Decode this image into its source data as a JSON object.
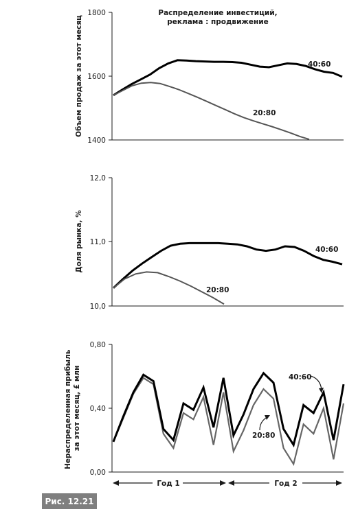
{
  "figure_caption": "Рис. 12.21",
  "chart_data": [
    {
      "type": "line",
      "title": "Распределение инвестиций,",
      "subtitle": "реклама : продвижение",
      "ylabel": "Объем продаж за этот месяц",
      "ylim": [
        1400,
        1800
      ],
      "yticks": [
        "1800",
        "1600",
        "1400"
      ],
      "series": [
        {
          "name": "40:60",
          "values": [
            1540,
            1558,
            1575,
            1590,
            1605,
            1625,
            1640,
            1650,
            1649,
            1647,
            1646,
            1645,
            1645,
            1644,
            1642,
            1636,
            1630,
            1628,
            1634,
            1640,
            1638,
            1632,
            1622,
            1614,
            1610,
            1598
          ],
          "color": "#000000"
        },
        {
          "name": "20:80",
          "values": [
            1540,
            1555,
            1570,
            1578,
            1580,
            1577,
            1568,
            1558,
            1546,
            1534,
            1521,
            1508,
            1495,
            1482,
            1470,
            1460,
            1451,
            1442,
            1432,
            1422,
            1411,
            1402
          ],
          "color": "#555555"
        }
      ]
    },
    {
      "type": "line",
      "ylabel": "Доля рынка, %",
      "ylim": [
        10.0,
        12.0
      ],
      "yticks": [
        "12,0",
        "11,0",
        "10,0"
      ],
      "series": [
        {
          "name": "40:60",
          "values": [
            10.28,
            10.42,
            10.55,
            10.66,
            10.76,
            10.86,
            10.94,
            10.97,
            10.98,
            10.98,
            10.98,
            10.98,
            10.97,
            10.96,
            10.93,
            10.88,
            10.86,
            10.88,
            10.93,
            10.92,
            10.86,
            10.78,
            10.72,
            10.69,
            10.65
          ],
          "color": "#000000"
        },
        {
          "name": "20:80",
          "values": [
            10.28,
            10.42,
            10.5,
            10.53,
            10.52,
            10.46,
            10.39,
            10.31,
            10.22,
            10.13,
            10.03
          ],
          "color": "#555555"
        }
      ]
    },
    {
      "type": "line",
      "ylabel": "Нераспределенная прибыль за этот месяц, £ млн",
      "ylim": [
        0.0,
        0.8
      ],
      "yticks": [
        "0,80",
        "0,40",
        "0,00"
      ],
      "year_labels": [
        "Год 1",
        "Год 2"
      ],
      "series": [
        {
          "name": "40:60",
          "values": [
            0.19,
            0.35,
            0.5,
            0.61,
            0.57,
            0.27,
            0.2,
            0.43,
            0.39,
            0.53,
            0.28,
            0.59,
            0.23,
            0.36,
            0.52,
            0.62,
            0.56,
            0.27,
            0.17,
            0.42,
            0.37,
            0.5,
            0.2,
            0.55
          ],
          "color": "#000000"
        },
        {
          "name": "20:80",
          "values": [
            0.19,
            0.34,
            0.49,
            0.59,
            0.55,
            0.24,
            0.15,
            0.37,
            0.33,
            0.47,
            0.17,
            0.5,
            0.13,
            0.26,
            0.42,
            0.52,
            0.46,
            0.15,
            0.05,
            0.3,
            0.24,
            0.4,
            0.08,
            0.43
          ],
          "color": "#666666"
        }
      ]
    }
  ]
}
